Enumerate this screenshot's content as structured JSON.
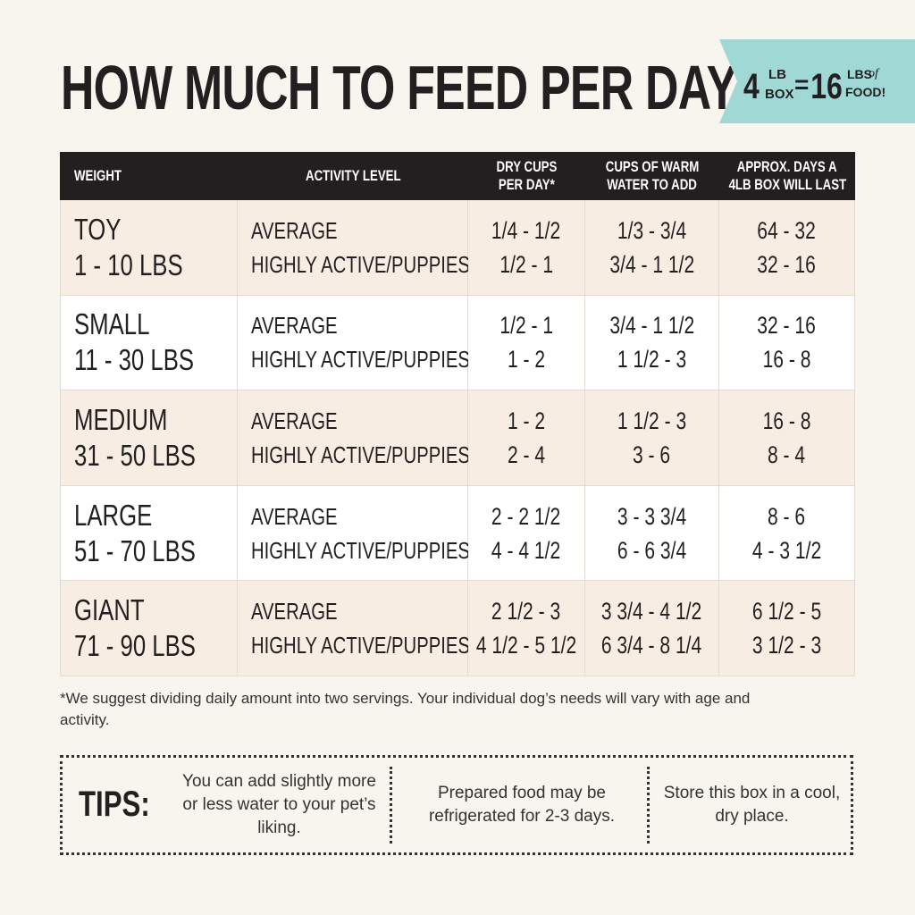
{
  "header": {
    "title": "HOW MUCH TO FEED PER DAY",
    "badge": {
      "amount": "4",
      "unit_top": "LB",
      "unit_bottom": "BOX",
      "equals": "=",
      "result": "16",
      "result_top": "LBS",
      "result_of": "of",
      "result_bottom": "FOOD!"
    }
  },
  "table": {
    "columns": [
      [
        "WEIGHT"
      ],
      [
        "ACTIVITY LEVEL"
      ],
      [
        "DRY CUPS",
        "PER DAY*"
      ],
      [
        "CUPS OF WARM",
        "WATER TO ADD"
      ],
      [
        "APPROX. DAYS A",
        "4LB BOX WILL LAST"
      ]
    ],
    "rows": [
      {
        "name": "TOY",
        "range": "1 - 10 LBS",
        "levels": [
          "AVERAGE",
          "HIGHLY ACTIVE/PUPPIES"
        ],
        "dry": [
          "1/4 - 1/2",
          "1/2 - 1"
        ],
        "water": [
          "1/3 - 3/4",
          "3/4 - 1 1/2"
        ],
        "days": [
          "64 - 32",
          "32 - 16"
        ]
      },
      {
        "name": "SMALL",
        "range": "11 - 30 LBS",
        "levels": [
          "AVERAGE",
          "HIGHLY ACTIVE/PUPPIES"
        ],
        "dry": [
          "1/2 - 1",
          "1 - 2"
        ],
        "water": [
          "3/4 - 1 1/2",
          "1 1/2 - 3"
        ],
        "days": [
          "32 - 16",
          "16 - 8"
        ]
      },
      {
        "name": "MEDIUM",
        "range": "31 - 50 LBS",
        "levels": [
          "AVERAGE",
          "HIGHLY ACTIVE/PUPPIES"
        ],
        "dry": [
          "1 - 2",
          "2 - 4"
        ],
        "water": [
          "1 1/2 - 3",
          "3 - 6"
        ],
        "days": [
          "16 - 8",
          "8 - 4"
        ]
      },
      {
        "name": "LARGE",
        "range": "51 - 70 LBS",
        "levels": [
          "AVERAGE",
          "HIGHLY ACTIVE/PUPPIES"
        ],
        "dry": [
          "2 - 2 1/2",
          "4 - 4 1/2"
        ],
        "water": [
          "3 - 3 3/4",
          "6 - 6 3/4"
        ],
        "days": [
          "8 - 6",
          "4 - 3 1/2"
        ]
      },
      {
        "name": "GIANT",
        "range": "71 - 90 LBS",
        "levels": [
          "AVERAGE",
          "HIGHLY ACTIVE/PUPPIES"
        ],
        "dry": [
          "2 1/2 - 3",
          "4 1/2 - 5 1/2"
        ],
        "water": [
          "3 3/4 - 4 1/2",
          "6 3/4 - 8 1/4"
        ],
        "days": [
          "6 1/2 - 5",
          "3 1/2 - 3"
        ]
      }
    ]
  },
  "footnote": "*We suggest dividing daily amount into two servings. Your individual dog’s needs will vary with age and activity.",
  "tips": {
    "label": "TIPS:",
    "items": [
      "You can add slightly more or less water to your pet’s liking.",
      "Prepared food may be refrigerated for 2-3 days.",
      "Store this box in a cool, dry place."
    ]
  }
}
